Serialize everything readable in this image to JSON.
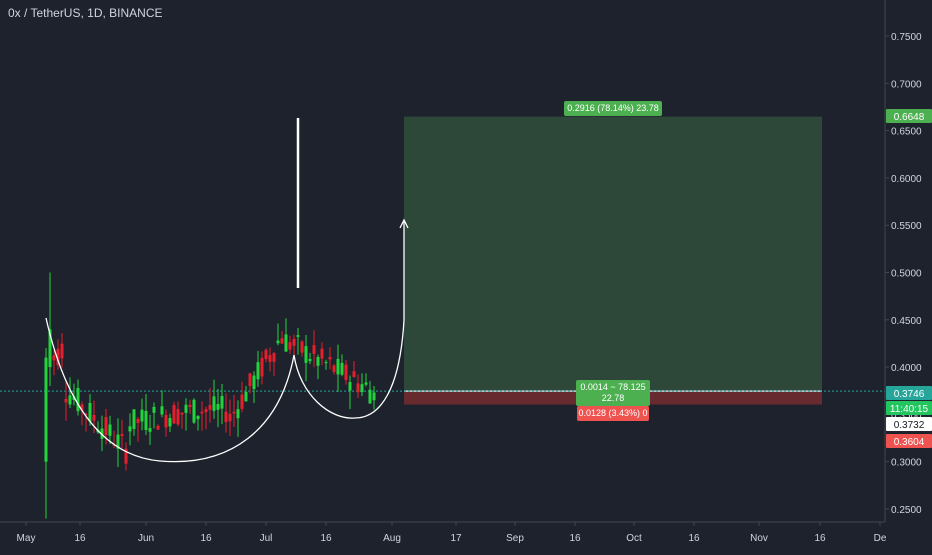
{
  "header": {
    "symbol": "0x / TetherUS",
    "interval": "1D",
    "exchange": "BINANCE"
  },
  "chart_data": {
    "type": "candlestick",
    "price_axis": {
      "ticks": [
        "0.7500",
        "0.7000",
        "0.6500",
        "0.6000",
        "0.5500",
        "0.5000",
        "0.4500",
        "0.4000",
        "0.3500",
        "0.3000",
        "0.2500"
      ],
      "ylim": [
        0.238,
        0.792
      ]
    },
    "time_axis": {
      "ticks": [
        "May",
        "16",
        "Jun",
        "16",
        "Jul",
        "16",
        "Aug",
        "17",
        "Sep",
        "16",
        "Oct",
        "16",
        "Nov",
        "16",
        "De"
      ]
    },
    "candles_summary": {
      "period": "May to late Jul",
      "low": 0.24,
      "high": 0.5,
      "last_close": 0.3732
    },
    "price_labels": [
      {
        "value": "0.6648",
        "color": "#4caf50",
        "kind": "target"
      },
      {
        "value": "0.3746",
        "color": "#26a69a",
        "kind": "entry"
      },
      {
        "value": "11:40:15",
        "color": "#22c55e",
        "kind": "countdown"
      },
      {
        "value": "0.3732",
        "color": "#ffffff",
        "kind": "last-price"
      },
      {
        "value": "0.3604",
        "color": "#ef5350",
        "kind": "stop"
      }
    ],
    "position": {
      "type": "long",
      "entry": 0.3746,
      "target": 0.6648,
      "stop": 0.3604,
      "target_label": "0.2916 (78.14%) 23.78",
      "entry_label_line1": "0.0014 ~ 78.125",
      "entry_label_line2": "22.78",
      "stop_label": "0.0128 (3.43%) 0"
    },
    "drawings": [
      "cup-and-handle curve",
      "vertical white line",
      "arrow up to target"
    ],
    "colors": {
      "background": "#1e222d",
      "up": "#22d43a",
      "down": "#e91e2c",
      "profit_zone": "#2e4a3a",
      "loss_zone": "#6b2b2f",
      "grid_line": "#ffffff"
    }
  }
}
